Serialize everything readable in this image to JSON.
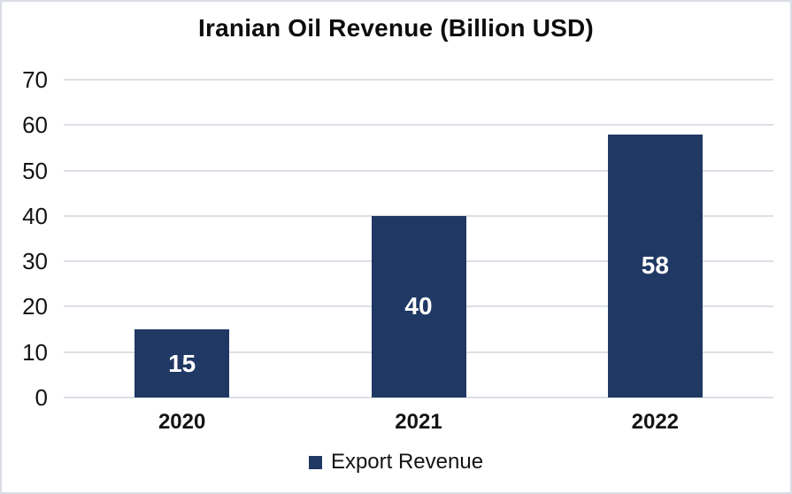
{
  "chart_data": {
    "type": "bar",
    "title": "Iranian Oil Revenue (Billion USD)",
    "categories": [
      "2020",
      "2021",
      "2022"
    ],
    "series": [
      {
        "name": "Export Revenue",
        "values": [
          15,
          40,
          58
        ]
      }
    ],
    "xlabel": "",
    "ylabel": "",
    "ylim": [
      0,
      70
    ],
    "yticks": [
      0,
      10,
      20,
      30,
      40,
      50,
      60,
      70
    ],
    "grid": "horizontal",
    "legend_position": "bottom",
    "colors": {
      "bar": "#203864",
      "data_label": "#ffffff",
      "gridline": "#dbe0e6",
      "frame_border": "#d9dee6",
      "text": "#141414",
      "background": "#ffffff"
    }
  }
}
